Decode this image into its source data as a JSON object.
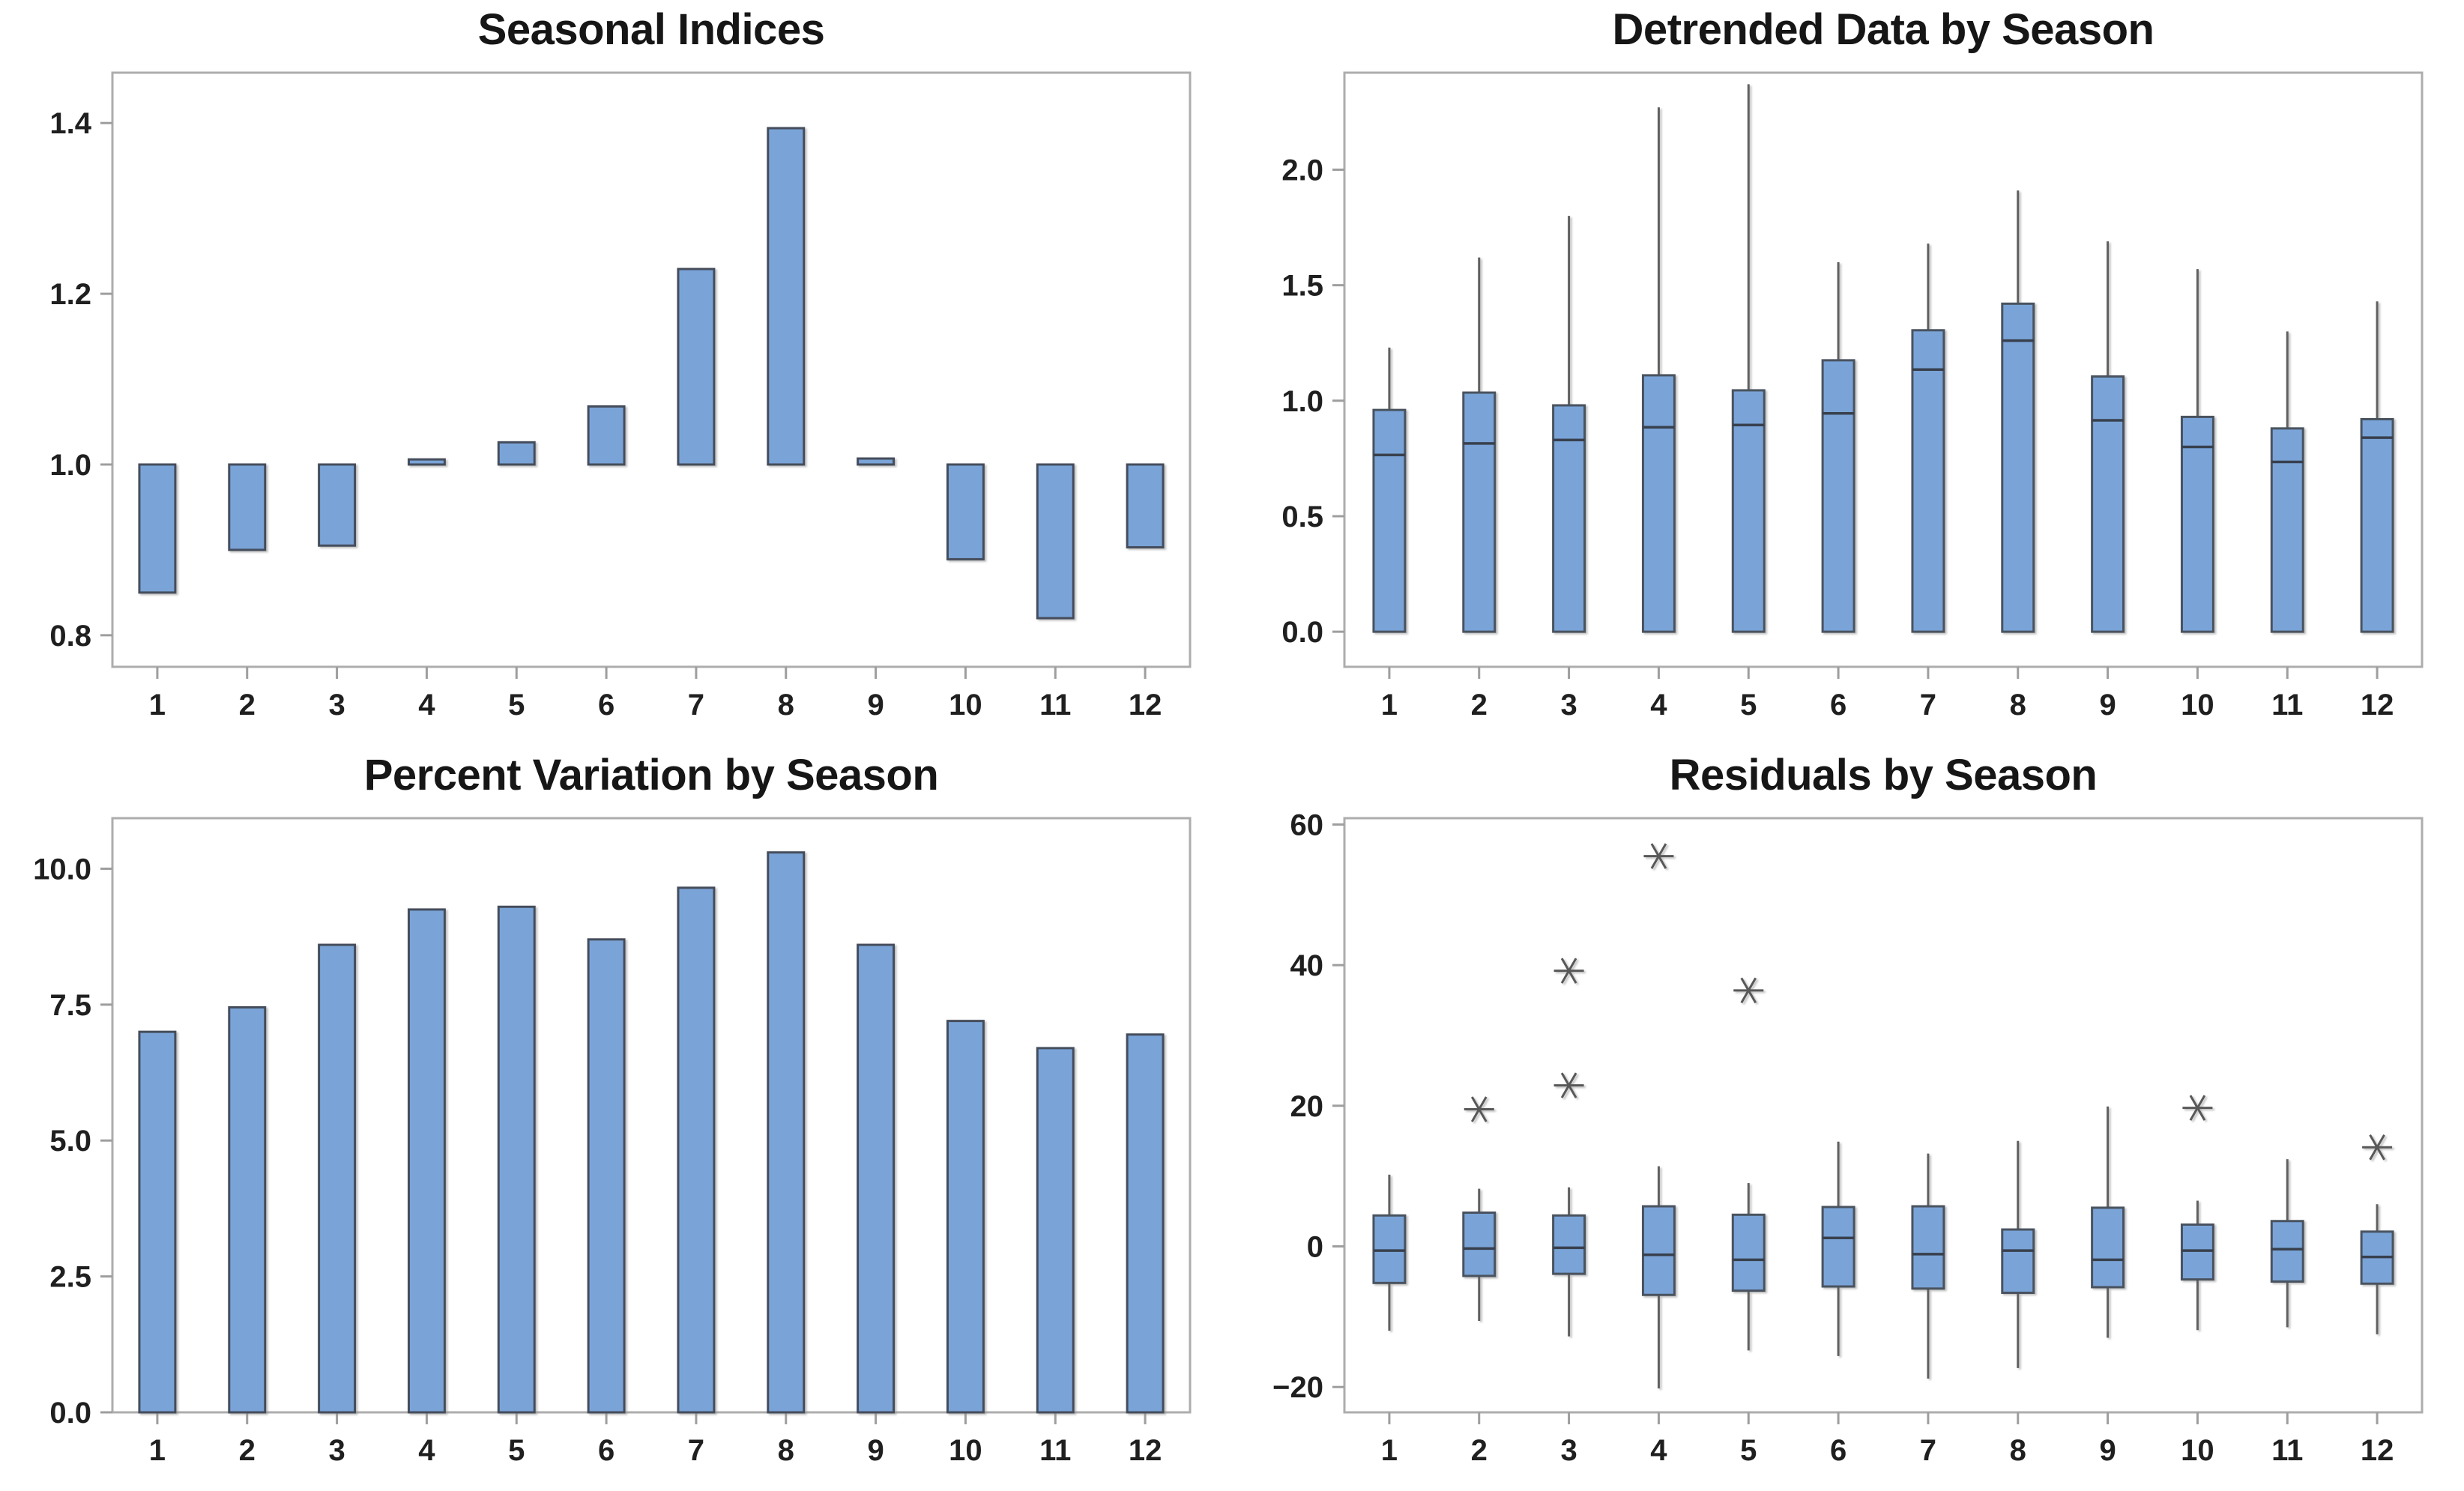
{
  "style": {
    "background": "#ffffff",
    "bar_fill": "#7AA4D8",
    "bar_edge": "#454D5B",
    "box_fill": "#7AA4D8",
    "box_edge": "#49525F",
    "median_color": "#39404E",
    "whisker_color": "#616161",
    "outlier_color": "#595959",
    "axis_border_color": "#ADADAD",
    "tick_mark_color": "#9E9E9E",
    "tick_label_color": "#1F1F1F",
    "title_color": "#161616"
  },
  "chart_data": [
    {
      "id": "seasonal-indices",
      "type": "bar",
      "title": "Seasonal Indices",
      "categories": [
        "1",
        "2",
        "3",
        "4",
        "5",
        "6",
        "7",
        "8",
        "9",
        "10",
        "11",
        "12"
      ],
      "values": [
        0.85,
        0.9,
        0.905,
        1.006,
        1.026,
        1.068,
        1.229,
        1.394,
        1.007,
        0.889,
        0.82,
        0.903
      ],
      "baseline": 1.0,
      "xlabel": "",
      "ylabel": "",
      "grid": false,
      "legend": "none",
      "ylim": [
        0.763,
        1.459
      ],
      "yticks": [
        {
          "v": 0.8,
          "label": "0.8"
        },
        {
          "v": 1.0,
          "label": "1.0"
        },
        {
          "v": 1.2,
          "label": "1.2"
        },
        {
          "v": 1.4,
          "label": "1.4"
        }
      ]
    },
    {
      "id": "detrended-data-by-season",
      "type": "boxplot",
      "title": "Detrended Data by Season",
      "categories": [
        "1",
        "2",
        "3",
        "4",
        "5",
        "6",
        "7",
        "8",
        "9",
        "10",
        "11",
        "12"
      ],
      "boxes": [
        {
          "whislo": 0,
          "q1": 0,
          "med": 0.765,
          "q3": 0.96,
          "whishi": 1.23,
          "outliers": []
        },
        {
          "whislo": 0,
          "q1": 0,
          "med": 0.815,
          "q3": 1.035,
          "whishi": 1.62,
          "outliers": []
        },
        {
          "whislo": 0,
          "q1": 0,
          "med": 0.83,
          "q3": 0.98,
          "whishi": 1.8,
          "outliers": []
        },
        {
          "whislo": 0,
          "q1": 0,
          "med": 0.885,
          "q3": 1.11,
          "whishi": 2.27,
          "outliers": []
        },
        {
          "whislo": 0,
          "q1": 0,
          "med": 0.895,
          "q3": 1.045,
          "whishi": 2.37,
          "outliers": []
        },
        {
          "whislo": 0,
          "q1": 0,
          "med": 0.945,
          "q3": 1.175,
          "whishi": 1.6,
          "outliers": []
        },
        {
          "whislo": 0,
          "q1": 0,
          "med": 1.135,
          "q3": 1.305,
          "whishi": 1.68,
          "outliers": []
        },
        {
          "whislo": 0,
          "q1": 0,
          "med": 1.26,
          "q3": 1.42,
          "whishi": 1.91,
          "outliers": []
        },
        {
          "whislo": 0,
          "q1": 0,
          "med": 0.915,
          "q3": 1.105,
          "whishi": 1.69,
          "outliers": []
        },
        {
          "whislo": 0,
          "q1": 0,
          "med": 0.8,
          "q3": 0.93,
          "whishi": 1.57,
          "outliers": []
        },
        {
          "whislo": 0,
          "q1": 0,
          "med": 0.735,
          "q3": 0.88,
          "whishi": 1.3,
          "outliers": []
        },
        {
          "whislo": 0,
          "q1": 0,
          "med": 0.84,
          "q3": 0.92,
          "whishi": 1.43,
          "outliers": []
        }
      ],
      "xlabel": "",
      "ylabel": "",
      "grid": false,
      "legend": "none",
      "ylim": [
        -0.152,
        2.42
      ],
      "yticks": [
        {
          "v": 0.0,
          "label": "0.0"
        },
        {
          "v": 0.5,
          "label": "0.5"
        },
        {
          "v": 1.0,
          "label": "1.0"
        },
        {
          "v": 1.5,
          "label": "1.5"
        },
        {
          "v": 2.0,
          "label": "2.0"
        }
      ]
    },
    {
      "id": "percent-variation-by-season",
      "type": "bar",
      "title": "Percent Variation by Season",
      "categories": [
        "1",
        "2",
        "3",
        "4",
        "5",
        "6",
        "7",
        "8",
        "9",
        "10",
        "11",
        "12"
      ],
      "values": [
        7.0,
        7.45,
        8.6,
        9.25,
        9.3,
        8.7,
        9.65,
        10.3,
        8.6,
        7.2,
        6.7,
        6.95
      ],
      "baseline": 0,
      "xlabel": "",
      "ylabel": "",
      "grid": false,
      "legend": "none",
      "ylim": [
        0,
        10.93
      ],
      "yticks": [
        {
          "v": 0.0,
          "label": "0.0"
        },
        {
          "v": 2.5,
          "label": "2.5"
        },
        {
          "v": 5.0,
          "label": "5.0"
        },
        {
          "v": 7.5,
          "label": "7.5"
        },
        {
          "v": 10.0,
          "label": "10.0"
        }
      ]
    },
    {
      "id": "residuals-by-season",
      "type": "boxplot",
      "title": "Residuals by Season",
      "categories": [
        "1",
        "2",
        "3",
        "4",
        "5",
        "6",
        "7",
        "8",
        "9",
        "10",
        "11",
        "12"
      ],
      "boxes": [
        {
          "whislo": -12.0,
          "q1": -5.2,
          "med": -0.6,
          "q3": 4.4,
          "whishi": 10.2,
          "outliers": []
        },
        {
          "whislo": -10.6,
          "q1": -4.2,
          "med": -0.3,
          "q3": 4.8,
          "whishi": 8.2,
          "outliers": [
            19.5
          ]
        },
        {
          "whislo": -12.8,
          "q1": -3.9,
          "med": -0.2,
          "q3": 4.4,
          "whishi": 8.4,
          "outliers": [
            22.9,
            39.2
          ]
        },
        {
          "whislo": -20.2,
          "q1": -6.9,
          "med": -1.2,
          "q3": 5.7,
          "whishi": 11.4,
          "outliers": [
            55.5
          ]
        },
        {
          "whislo": -14.8,
          "q1": -6.3,
          "med": -1.9,
          "q3": 4.5,
          "whishi": 9.0,
          "outliers": [
            36.4
          ]
        },
        {
          "whislo": -15.6,
          "q1": -5.7,
          "med": 1.2,
          "q3": 5.6,
          "whishi": 14.9,
          "outliers": []
        },
        {
          "whislo": -18.8,
          "q1": -6.0,
          "med": -1.1,
          "q3": 5.7,
          "whishi": 13.2,
          "outliers": []
        },
        {
          "whislo": -17.3,
          "q1": -6.6,
          "med": -0.6,
          "q3": 2.4,
          "whishi": 15.0,
          "outliers": []
        },
        {
          "whislo": -13.0,
          "q1": -5.8,
          "med": -1.9,
          "q3": 5.5,
          "whishi": 19.9,
          "outliers": []
        },
        {
          "whislo": -11.9,
          "q1": -4.7,
          "med": -0.6,
          "q3": 3.1,
          "whishi": 6.5,
          "outliers": [
            19.7
          ]
        },
        {
          "whislo": -11.5,
          "q1": -5.0,
          "med": -0.4,
          "q3": 3.6,
          "whishi": 12.4,
          "outliers": []
        },
        {
          "whislo": -12.5,
          "q1": -5.3,
          "med": -1.5,
          "q3": 2.1,
          "whishi": 6.0,
          "outliers": [
            14.1
          ]
        }
      ],
      "xlabel": "",
      "ylabel": "",
      "grid": false,
      "legend": "none",
      "ylim": [
        -23.6,
        60.9
      ],
      "yticks": [
        {
          "v": -20,
          "label": "−20"
        },
        {
          "v": 0,
          "label": "0"
        },
        {
          "v": 20,
          "label": "20"
        },
        {
          "v": 40,
          "label": "40"
        },
        {
          "v": 60,
          "label": "60"
        }
      ]
    }
  ]
}
